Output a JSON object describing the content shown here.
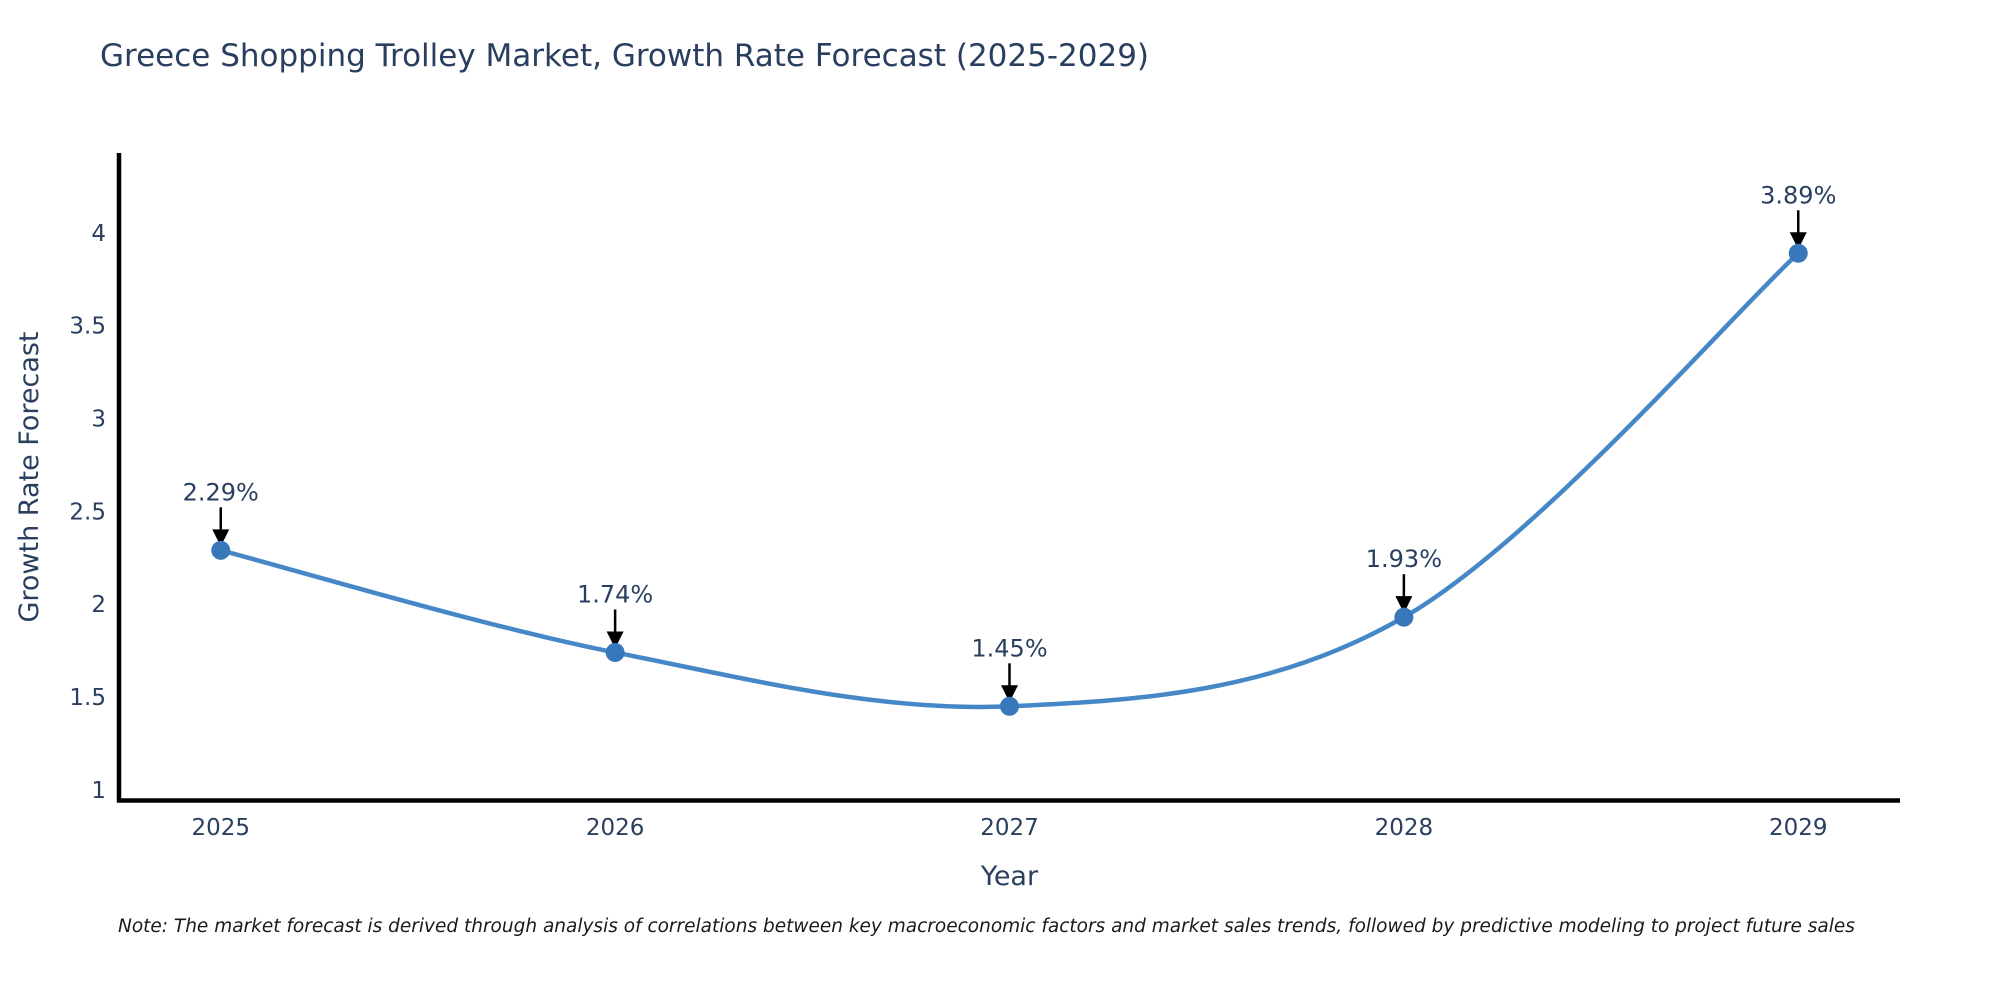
{
  "page": {
    "background": "#ffffff"
  },
  "title": "Greece Shopping Trolley Market, Growth Rate Forecast (2025-2029)",
  "footnote": "Note: The market forecast is derived through analysis of correlations between key macroeconomic factors and market sales trends, followed by predictive modeling to project future sales",
  "chart_data": {
    "type": "line",
    "title": "Greece Shopping Trolley Market, Growth Rate Forecast (2025-2029)",
    "xlabel": "Year",
    "ylabel": "Growth Rate Forecast",
    "x": [
      2025,
      2026,
      2027,
      2028,
      2029
    ],
    "series": [
      {
        "name": "Growth Rate Forecast",
        "values": [
          2.29,
          1.74,
          1.45,
          1.93,
          3.89
        ],
        "labels": [
          "2.29%",
          "1.74%",
          "1.45%",
          "1.93%",
          "3.89%"
        ]
      }
    ],
    "line_shape": "spline",
    "markers": true,
    "annotations": true,
    "grid": false,
    "legend": false,
    "xticks": [
      "2025",
      "2026",
      "2027",
      "2028",
      "2029"
    ],
    "yticks": [
      1,
      1.5,
      2,
      2.5,
      3,
      3.5,
      4
    ],
    "xlim": [
      2024.742,
      2029.258
    ],
    "ylim": [
      0.94,
      4.43
    ],
    "colors": {
      "line": "#4688c7",
      "marker": "#3878ba",
      "arrow": "#000000",
      "axis_line": "#000000",
      "text": "#2a3f5f",
      "note": "#1a1a1a",
      "background": "#ffffff"
    }
  }
}
